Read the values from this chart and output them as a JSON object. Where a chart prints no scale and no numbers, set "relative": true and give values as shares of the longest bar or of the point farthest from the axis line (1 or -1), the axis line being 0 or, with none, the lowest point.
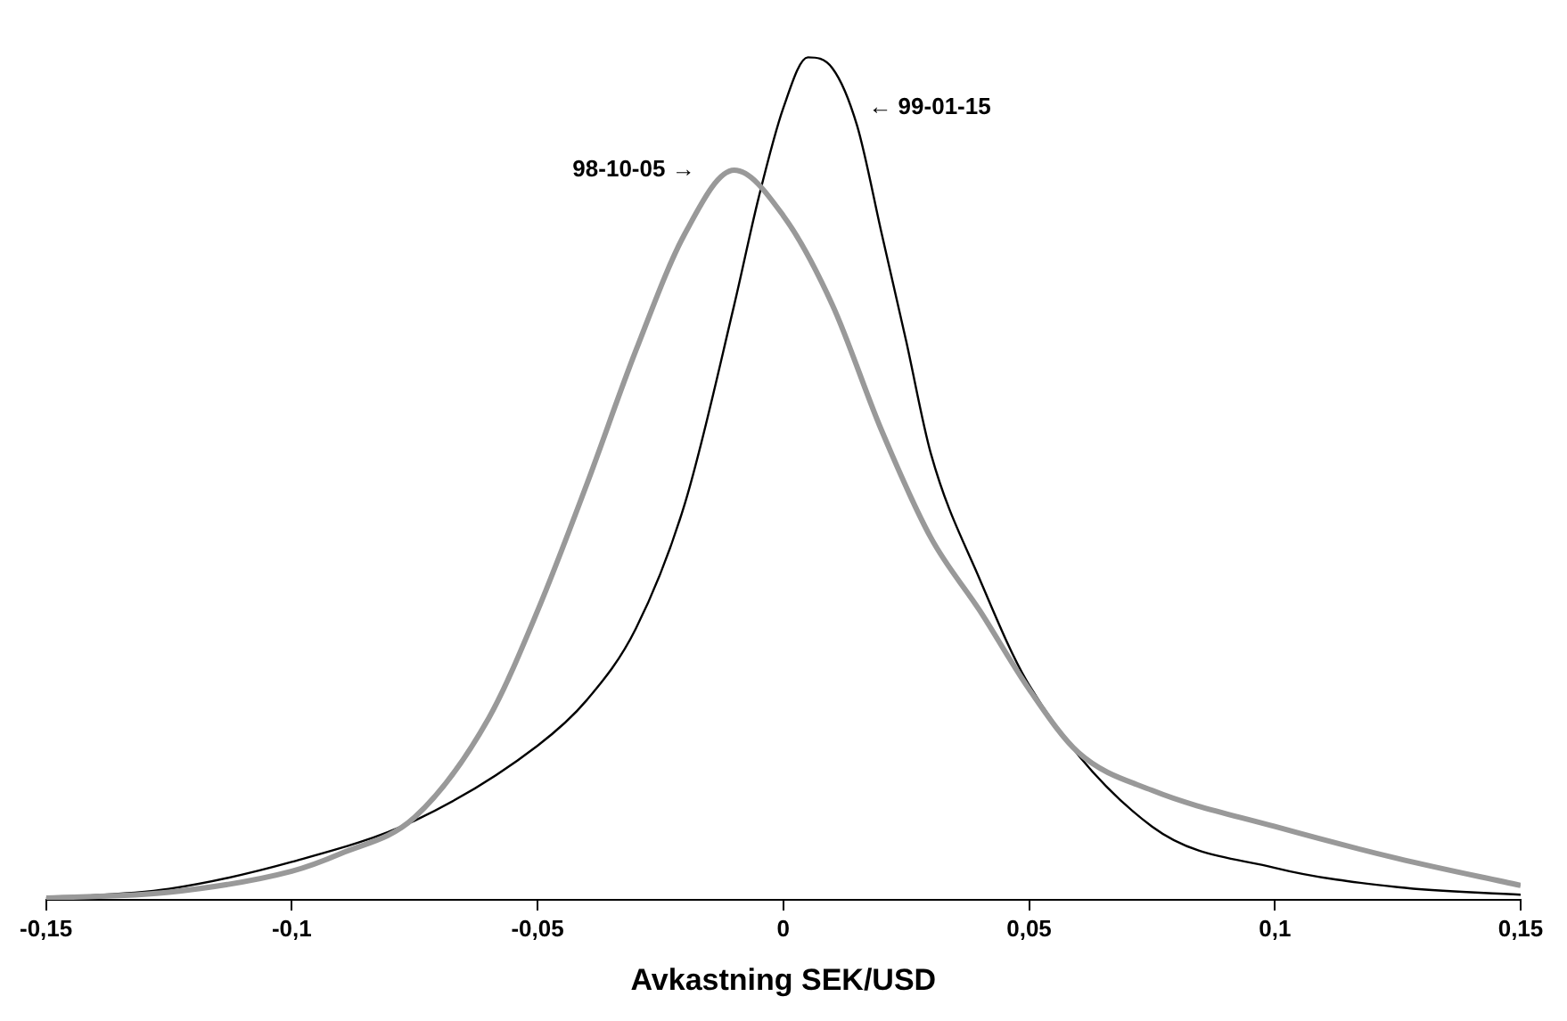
{
  "chart_data": {
    "type": "line",
    "relative": true,
    "xlabel": "Avkastning SEK/USD",
    "xlim": [
      -0.15,
      0.15
    ],
    "xticks": [
      {
        "value": -0.15,
        "label": "-0,15"
      },
      {
        "value": -0.1,
        "label": "-0,1"
      },
      {
        "value": -0.05,
        "label": "-0,05"
      },
      0,
      {
        "value": 0.05,
        "label": "0,05"
      },
      {
        "value": 0.1,
        "label": "0,1"
      },
      {
        "value": 0.15,
        "label": "0,15"
      }
    ],
    "grid": false,
    "legend": false,
    "marker": "none",
    "line_style": "solid",
    "series": [
      {
        "name": "98-10-05 →",
        "color": "#999999",
        "x": [
          -0.15,
          -0.125,
          -0.1,
          -0.09,
          -0.075,
          -0.06,
          -0.05,
          -0.04,
          -0.03,
          -0.02,
          -0.01,
          0,
          0.01,
          0.02,
          0.03,
          0.04,
          0.05,
          0.06,
          0.075,
          0.1,
          0.125,
          0.15
        ],
        "values": [
          0.002,
          0.009,
          0.034,
          0.055,
          0.098,
          0.215,
          0.343,
          0.493,
          0.652,
          0.791,
          0.866,
          0.812,
          0.706,
          0.557,
          0.43,
          0.343,
          0.25,
          0.175,
          0.13,
          0.087,
          0.049,
          0.017
        ]
      },
      {
        "name": "← 99-01-15",
        "color": "#000000",
        "x": [
          -0.15,
          -0.125,
          -0.1,
          -0.075,
          -0.05,
          -0.04,
          -0.03,
          -0.02,
          -0.01,
          -0.005,
          0,
          0.005,
          0.01,
          0.015,
          0.02,
          0.025,
          0.03,
          0.04,
          0.05,
          0.075,
          0.1,
          0.125,
          0.15
        ],
        "values": [
          0.002,
          0.013,
          0.045,
          0.094,
          0.183,
          0.237,
          0.322,
          0.471,
          0.706,
          0.834,
          0.94,
          1,
          0.987,
          0.919,
          0.791,
          0.663,
          0.53,
          0.38,
          0.255,
          0.087,
          0.038,
          0.015,
          0.006
        ]
      }
    ]
  }
}
